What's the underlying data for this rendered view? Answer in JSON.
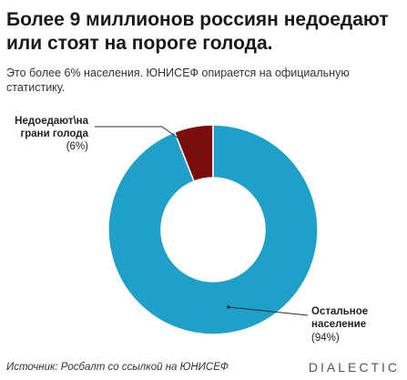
{
  "title": "Более 9 миллионов россиян недоедают или стоят на пороге голода.",
  "subtitle": "Это более 6% населения. ЮНИСЕФ опирается на официальную статистику.",
  "source": "Источник: Росбалт со ссылкой на ЮНИСЕФ",
  "brand": "DIALECTIC",
  "chart_data": {
    "type": "pie",
    "donut": true,
    "categories": [
      "Недоедают\\на грани голода",
      "Остальное население"
    ],
    "values": [
      6,
      94
    ],
    "value_labels": [
      "(6%)",
      "(94%)"
    ],
    "colors": [
      "#7d0c0c",
      "#1fa0c8"
    ]
  }
}
